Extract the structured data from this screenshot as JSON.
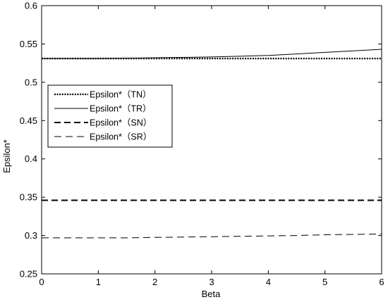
{
  "chart_data": {
    "type": "line",
    "xlabel": "Beta",
    "ylabel": "Epsilon*",
    "xlim": [
      0,
      6
    ],
    "ylim": [
      0.25,
      0.6
    ],
    "xticks": [
      "0",
      "1",
      "2",
      "3",
      "4",
      "5",
      "6"
    ],
    "yticks": [
      "0.25",
      "0.3",
      "0.35",
      "0.4",
      "0.45",
      "0.5",
      "0.55",
      "0.6"
    ],
    "grid": false,
    "legend_position": "center-left",
    "x": [
      0,
      0.5,
      1,
      1.5,
      2,
      2.5,
      3,
      3.5,
      4,
      4.5,
      5,
      5.5,
      6
    ],
    "series": [
      {
        "name": "Epsilon*（TN）",
        "style": "dotted",
        "values": [
          0.531,
          0.531,
          0.531,
          0.531,
          0.531,
          0.531,
          0.531,
          0.531,
          0.531,
          0.531,
          0.531,
          0.531,
          0.531
        ]
      },
      {
        "name": "Epsilon*（TR）",
        "style": "solid",
        "values": [
          0.531,
          0.531,
          0.531,
          0.5315,
          0.532,
          0.5325,
          0.533,
          0.534,
          0.535,
          0.537,
          0.539,
          0.541,
          0.543
        ]
      },
      {
        "name": "Epsilon*（SN）",
        "style": "dashed-thick",
        "values": [
          0.346,
          0.346,
          0.346,
          0.346,
          0.346,
          0.346,
          0.346,
          0.346,
          0.346,
          0.346,
          0.346,
          0.346,
          0.346
        ]
      },
      {
        "name": "Epsilon*（SR）",
        "style": "dashed-thin",
        "values": [
          0.297,
          0.297,
          0.297,
          0.297,
          0.2975,
          0.298,
          0.2985,
          0.299,
          0.2995,
          0.3,
          0.301,
          0.3015,
          0.302
        ]
      }
    ],
    "colors": {
      "line": "#000000",
      "background": "#ffffff"
    }
  }
}
